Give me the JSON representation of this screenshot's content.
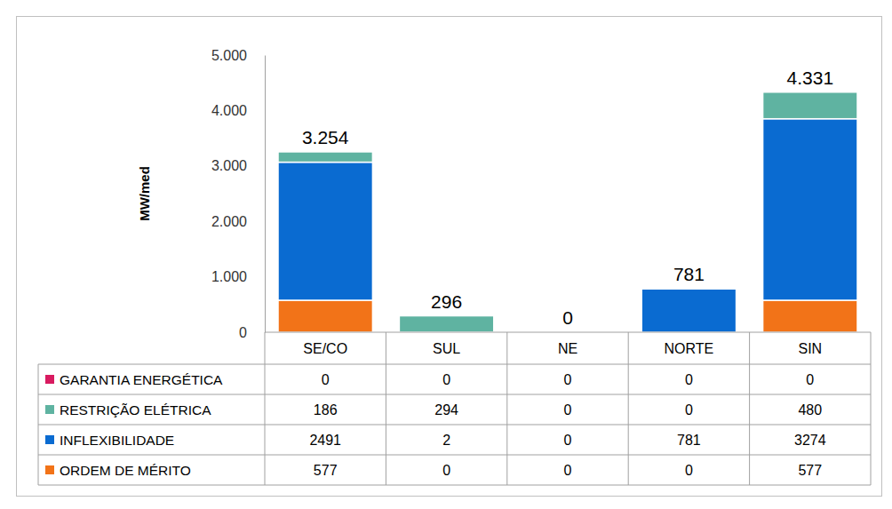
{
  "chart_data": {
    "type": "bar",
    "stacked": true,
    "y_label": "MW/med",
    "categories": [
      "SE/CO",
      "SUL",
      "NE",
      "NORTE",
      "SIN"
    ],
    "series": [
      {
        "name": "GARANTIA ENERGÉTICA",
        "color": "#d81b60",
        "values": [
          0,
          0,
          0,
          0,
          0
        ]
      },
      {
        "name": "RESTRIÇÃO ELÉTRICA",
        "color": "#5fb3a1",
        "values": [
          186,
          294,
          0,
          0,
          480
        ]
      },
      {
        "name": "INFLEXIBILIDADE",
        "color": "#0a6bd1",
        "values": [
          2491,
          2,
          0,
          781,
          3274
        ]
      },
      {
        "name": "ORDEM DE MÉRITO",
        "color": "#f27318",
        "values": [
          577,
          0,
          0,
          0,
          577
        ]
      }
    ],
    "totals": [
      3254,
      296,
      0,
      781,
      4331
    ],
    "total_labels": [
      "3.254",
      "296",
      "0",
      "781",
      "4.331"
    ],
    "ylim": [
      0,
      5000
    ],
    "yticks": [
      0,
      {
        "value": 1000,
        "label": "1.000"
      },
      {
        "value": 2000,
        "label": "2.000"
      },
      {
        "value": 3000,
        "label": "3.000"
      },
      {
        "value": 4000,
        "label": "4.000"
      },
      {
        "value": 5000,
        "label": "5.000"
      }
    ],
    "grid": false
  }
}
